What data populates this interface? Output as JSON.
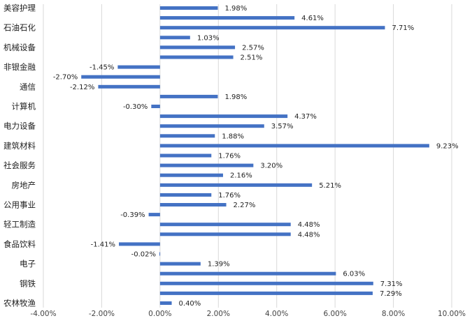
{
  "chart_data": {
    "type": "bar",
    "orientation": "horizontal",
    "title": "",
    "xlabel": "",
    "ylabel": "",
    "xlim": [
      -4,
      10
    ],
    "x_ticks": [
      -4,
      -2,
      0,
      2,
      4,
      6,
      8,
      10
    ],
    "x_tick_labels": [
      "-4.00%",
      "-2.00%",
      "0.00%",
      "2.00%",
      "4.00%",
      "6.00%",
      "8.00%",
      "10.00%"
    ],
    "grid": "vertical",
    "bar_color": "#4472C4",
    "grid_color": "#D9D9D9",
    "values": [
      1.98,
      4.61,
      7.71,
      1.03,
      2.57,
      2.51,
      -1.45,
      -2.7,
      -2.12,
      1.98,
      -0.3,
      4.37,
      3.57,
      1.88,
      9.23,
      1.76,
      3.2,
      2.16,
      5.21,
      1.76,
      2.27,
      -0.39,
      4.48,
      4.48,
      -1.41,
      -0.02,
      1.39,
      6.03,
      7.31,
      7.29,
      0.4
    ],
    "value_labels": [
      "1.98%",
      "4.61%",
      "7.71%",
      "1.03%",
      "2.57%",
      "2.51%",
      "-1.45%",
      "-2.70%",
      "-2.12%",
      "1.98%",
      "-0.30%",
      "4.37%",
      "3.57%",
      "1.88%",
      "9.23%",
      "1.76%",
      "3.20%",
      "2.16%",
      "5.21%",
      "1.76%",
      "2.27%",
      "-0.39%",
      "4.48%",
      "4.48%",
      "-1.41%",
      "-0.02%",
      "1.39%",
      "6.03%",
      "7.31%",
      "7.29%",
      "0.40%"
    ],
    "category_labels": [
      "美容护理",
      "",
      "石油石化",
      "",
      "机械设备",
      "",
      "非银金融",
      "",
      "通信",
      "",
      "计算机",
      "",
      "电力设备",
      "",
      "建筑材料",
      "",
      "社会服务",
      "",
      "房地产",
      "",
      "公用事业",
      "",
      "轻工制造",
      "",
      "食品饮料",
      "",
      "电子",
      "",
      "钢铁",
      "",
      "农林牧渔"
    ]
  }
}
